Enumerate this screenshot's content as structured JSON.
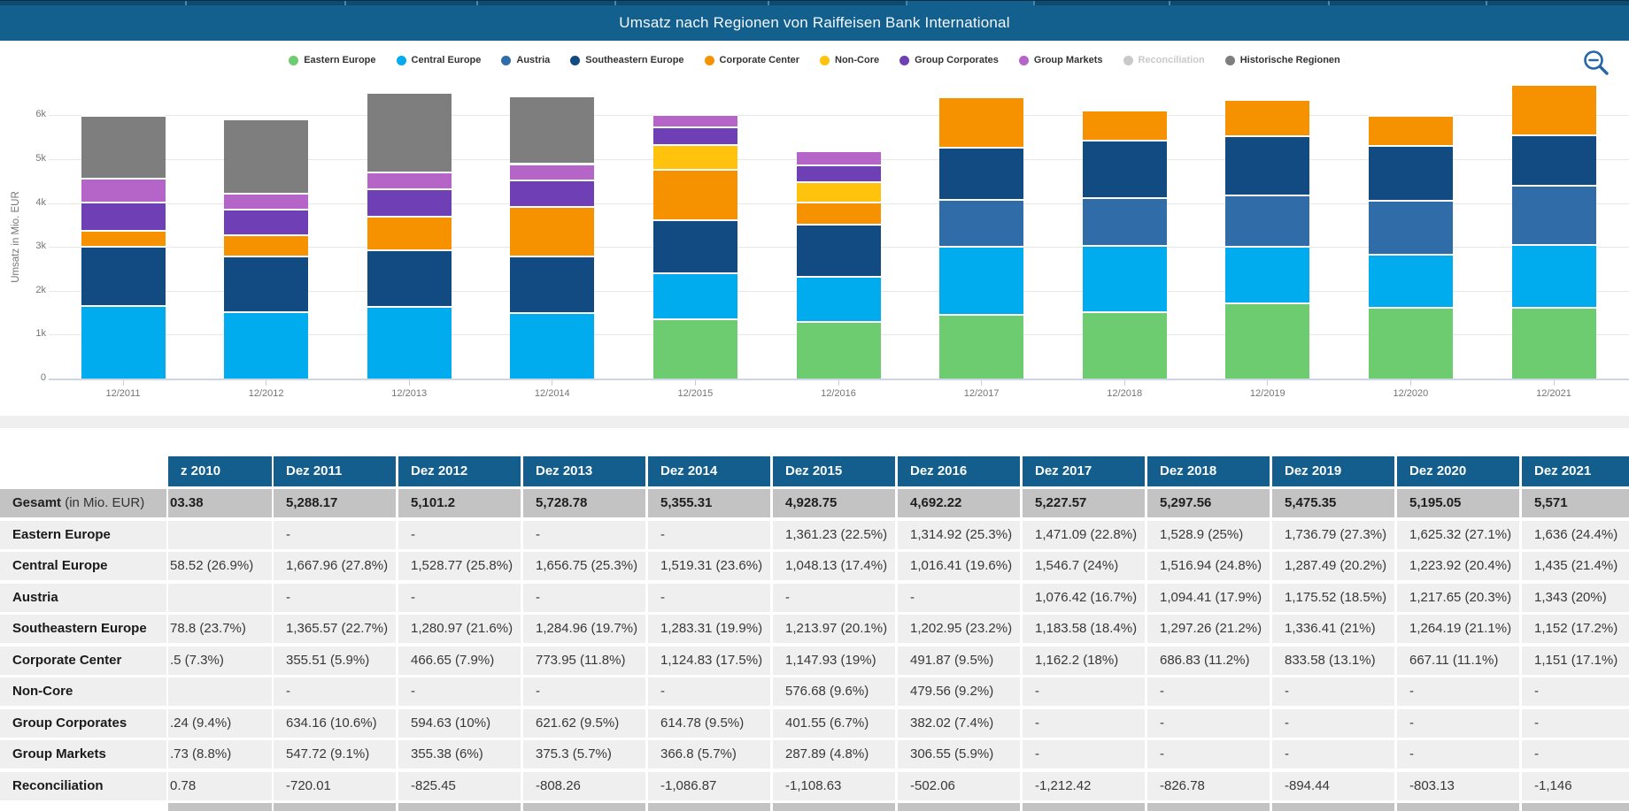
{
  "title": "Umsatz nach Regionen von Raiffeisen Bank International",
  "chart": {
    "y_axis_label": "Umsatz in Mio. EUR",
    "y_ticks": [
      "0",
      "1k",
      "2k",
      "3k",
      "4k",
      "5k",
      "6k"
    ],
    "zoom_out_icon_color": "#2565a8"
  },
  "legend": [
    {
      "label": "Eastern Europe",
      "color": "#6dcb70",
      "disabled": false
    },
    {
      "label": "Central Europe",
      "color": "#00abee",
      "disabled": false
    },
    {
      "label": "Austria",
      "color": "#306ca8",
      "disabled": false
    },
    {
      "label": "Southeastern Europe",
      "color": "#114b82",
      "disabled": false
    },
    {
      "label": "Corporate Center",
      "color": "#f69200",
      "disabled": false
    },
    {
      "label": "Non-Core",
      "color": "#ffc20d",
      "disabled": false
    },
    {
      "label": "Group Corporates",
      "color": "#6f3fb5",
      "disabled": false
    },
    {
      "label": "Group Markets",
      "color": "#b565c7",
      "disabled": false
    },
    {
      "label": "Reconciliation",
      "color": "#c9c9c9",
      "disabled": true
    },
    {
      "label": "Historische Regionen",
      "color": "#7e7e7e",
      "disabled": false
    }
  ],
  "chart_data": {
    "type": "bar",
    "stacked": true,
    "title": "Umsatz nach Regionen von Raiffeisen Bank International",
    "ylabel": "Umsatz in Mio. EUR",
    "ylim": [
      0,
      6800
    ],
    "grid": true,
    "legend_position": "top-center",
    "categories": [
      "12/2011",
      "12/2012",
      "12/2013",
      "12/2014",
      "12/2015",
      "12/2016",
      "12/2017",
      "12/2018",
      "12/2019",
      "12/2020",
      "12/2021"
    ],
    "series": [
      {
        "name": "Eastern Europe",
        "color": "#6dcb70",
        "values": [
          null,
          null,
          null,
          null,
          1361.23,
          1314.92,
          1471.09,
          1528.9,
          1736.79,
          1625.32,
          1636
        ]
      },
      {
        "name": "Central Europe",
        "color": "#00abee",
        "values": [
          1667.96,
          1528.77,
          1656.75,
          1519.31,
          1048.13,
          1016.41,
          1546.7,
          1516.94,
          1287.49,
          1223.92,
          1435
        ]
      },
      {
        "name": "Austria",
        "color": "#306ca8",
        "values": [
          null,
          null,
          null,
          null,
          null,
          null,
          1076.42,
          1094.41,
          1175.52,
          1217.65,
          1343
        ]
      },
      {
        "name": "Southeastern Europe",
        "color": "#114b82",
        "values": [
          1365.57,
          1280.97,
          1284.96,
          1283.31,
          1213.97,
          1202.95,
          1183.58,
          1297.26,
          1336.41,
          1264.19,
          1152
        ]
      },
      {
        "name": "Corporate Center",
        "color": "#f69200",
        "values": [
          355.51,
          466.65,
          773.95,
          1124.83,
          1147.93,
          491.87,
          1162.2,
          686.83,
          833.58,
          667.11,
          1151
        ]
      },
      {
        "name": "Non-Core",
        "color": "#ffc20d",
        "values": [
          null,
          null,
          null,
          null,
          576.68,
          479.56,
          null,
          null,
          null,
          null,
          null
        ]
      },
      {
        "name": "Group Corporates",
        "color": "#6f3fb5",
        "values": [
          634.16,
          594.63,
          621.62,
          614.78,
          401.55,
          382.02,
          null,
          null,
          null,
          null,
          null
        ]
      },
      {
        "name": "Group Markets",
        "color": "#b565c7",
        "values": [
          547.72,
          355.38,
          375.3,
          366.8,
          287.89,
          306.55,
          null,
          null,
          null,
          null,
          null
        ]
      },
      {
        "name": "Historische Regionen",
        "color": "#7e7e7e",
        "values": [
          1437.26,
          1700.25,
          1824.46,
          1533.15,
          null,
          null,
          null,
          null,
          null,
          null,
          null
        ]
      }
    ],
    "excluded_negative_series": {
      "name": "Reconciliation",
      "values": [
        -720.01,
        -825.45,
        -808.26,
        -1086.87,
        -1108.63,
        -502.06,
        -1212.42,
        -826.78,
        -894.44,
        -803.13,
        -1146
      ]
    }
  },
  "table": {
    "header_cut": "z 2010",
    "headers": [
      "Dez 2011",
      "Dez 2012",
      "Dez 2013",
      "Dez 2014",
      "Dez 2015",
      "Dez 2016",
      "Dez 2017",
      "Dez 2018",
      "Dez 2019",
      "Dez 2020",
      "Dez 2021"
    ],
    "rows": [
      {
        "label": "Gesamt",
        "label_suffix": " (in Mio. EUR)",
        "total": true,
        "cut": "03.38",
        "values": [
          "5,288.17",
          "5,101.2",
          "5,728.78",
          "5,355.31",
          "4,928.75",
          "4,692.22",
          "5,227.57",
          "5,297.56",
          "5,475.35",
          "5,195.05",
          "5,571"
        ]
      },
      {
        "label": "Eastern Europe",
        "cut": "",
        "values": [
          "-",
          "-",
          "-",
          "-",
          "1,361.23 (22.5%)",
          "1,314.92 (25.3%)",
          "1,471.09 (22.8%)",
          "1,528.9 (25%)",
          "1,736.79 (27.3%)",
          "1,625.32 (27.1%)",
          "1,636 (24.4%)"
        ]
      },
      {
        "label": "Central Europe",
        "cut": "58.52 (26.9%)",
        "values": [
          "1,667.96 (27.8%)",
          "1,528.77 (25.8%)",
          "1,656.75 (25.3%)",
          "1,519.31 (23.6%)",
          "1,048.13 (17.4%)",
          "1,016.41 (19.6%)",
          "1,546.7 (24%)",
          "1,516.94 (24.8%)",
          "1,287.49 (20.2%)",
          "1,223.92 (20.4%)",
          "1,435 (21.4%)"
        ]
      },
      {
        "label": "Austria",
        "cut": "",
        "values": [
          "-",
          "-",
          "-",
          "-",
          "-",
          "-",
          "1,076.42 (16.7%)",
          "1,094.41 (17.9%)",
          "1,175.52 (18.5%)",
          "1,217.65 (20.3%)",
          "1,343 (20%)"
        ]
      },
      {
        "label": "Southeastern Europe",
        "cut": "78.8 (23.7%)",
        "values": [
          "1,365.57 (22.7%)",
          "1,280.97 (21.6%)",
          "1,284.96 (19.7%)",
          "1,283.31 (19.9%)",
          "1,213.97 (20.1%)",
          "1,202.95 (23.2%)",
          "1,183.58 (18.4%)",
          "1,297.26 (21.2%)",
          "1,336.41 (21%)",
          "1,264.19 (21.1%)",
          "1,152 (17.2%)"
        ]
      },
      {
        "label": "Corporate Center",
        "cut": ".5 (7.3%)",
        "values": [
          "355.51 (5.9%)",
          "466.65 (7.9%)",
          "773.95 (11.8%)",
          "1,124.83 (17.5%)",
          "1,147.93 (19%)",
          "491.87 (9.5%)",
          "1,162.2 (18%)",
          "686.83 (11.2%)",
          "833.58 (13.1%)",
          "667.11 (11.1%)",
          "1,151 (17.1%)"
        ]
      },
      {
        "label": "Non-Core",
        "cut": "",
        "values": [
          "-",
          "-",
          "-",
          "-",
          "576.68 (9.6%)",
          "479.56 (9.2%)",
          "-",
          "-",
          "-",
          "-",
          "-"
        ]
      },
      {
        "label": "Group Corporates",
        "cut": ".24 (9.4%)",
        "values": [
          "634.16 (10.6%)",
          "594.63 (10%)",
          "621.62 (9.5%)",
          "614.78 (9.5%)",
          "401.55 (6.7%)",
          "382.02 (7.4%)",
          "-",
          "-",
          "-",
          "-",
          "-"
        ]
      },
      {
        "label": "Group Markets",
        "cut": ".73 (8.8%)",
        "values": [
          "547.72 (9.1%)",
          "355.38 (6%)",
          "375.3 (5.7%)",
          "366.8 (5.7%)",
          "287.89 (4.8%)",
          "306.55 (5.9%)",
          "-",
          "-",
          "-",
          "-",
          "-"
        ]
      },
      {
        "label": "Reconciliation",
        "cut": "0.78",
        "values": [
          "-720.01",
          "-825.45",
          "-808.26",
          "-1,086.87",
          "-1,108.63",
          "-502.06",
          "-1,212.42",
          "-826.78",
          "-894.44",
          "-803.13",
          "-1,146"
        ]
      }
    ],
    "partial_row_visible": true
  }
}
